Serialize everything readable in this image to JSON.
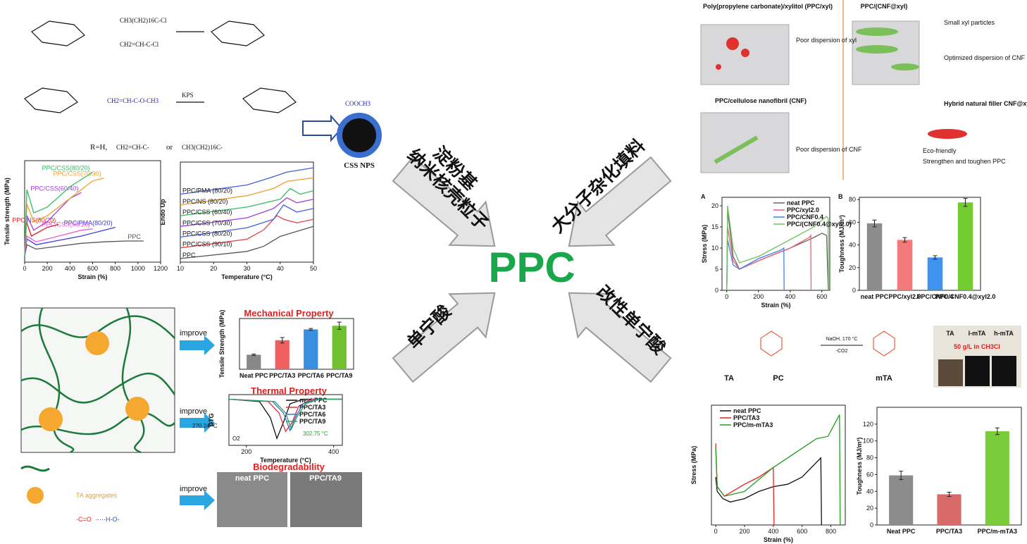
{
  "center": {
    "title": "PPC",
    "arrows": [
      "淀粉基",
      "纳米核壳粒子",
      "大分子杂化填料",
      "单宁酸",
      "改性单宁酸"
    ]
  },
  "top_left": {
    "reagents": [
      "CH3(CH2)16C-Cl",
      "CH2=CH-C-Cl",
      "CH2=CH-C-O-CH3",
      "COOCH3"
    ],
    "catalyst": "KPS",
    "r_group": [
      "R=H,",
      "CH2=CH-C-",
      "or",
      "CH3(CH2)16C-"
    ],
    "particle": "CSS NPS"
  },
  "bottom_left": {
    "improve": [
      "improve",
      "improve",
      "improve"
    ],
    "biodegradability": "Biodegradability",
    "sem": [
      "neat PPC",
      "PPC/TA9"
    ],
    "legend": [
      "TA aggregates",
      "-C=O",
      "·····H-O-"
    ]
  },
  "top_right": {
    "titles": [
      "Poly(propylene carbonate)/xylitol (PPC/xyl)",
      "PPC/(CNF@xyl)",
      "PPC/cellulose nanofibril (CNF)"
    ],
    "notes": [
      "Poor dispersion of xyl",
      "Small xyl particles",
      "Optimized dispersion of CNF",
      "Poor dispersion of CNF",
      "Hybrid natural filler CNF@xyl"
    ],
    "bullets": [
      "Eco-friendly",
      "Strengthen and toughen PPC"
    ]
  },
  "middle_right": {
    "labels": [
      "TA",
      "PC",
      "mTA"
    ],
    "conditions": [
      "NaOH, 170 °C",
      "-CO2"
    ],
    "vials": [
      "TA",
      "l-mTA",
      "h-mTA"
    ],
    "vial_note": "50 g/L in CH3Cl"
  },
  "chart_data": [
    {
      "type": "line",
      "y_label": "Tensile strength (MPa)",
      "x_label": "Strain (%)",
      "xlim": [
        0,
        1200
      ],
      "xticks": [
        0,
        200,
        400,
        600,
        800,
        1000,
        1200
      ],
      "ylim": [
        0,
        35
      ],
      "legend": "inline",
      "series": [
        {
          "name": "PPC",
          "color": "#555555",
          "x": [
            0,
            20,
            100,
            300,
            500,
            700,
            900,
            1050
          ],
          "values": [
            2,
            6,
            4.5,
            5.5,
            6.5,
            7,
            7.3,
            7.3
          ]
        },
        {
          "name": "PPC/PMA(80/20)",
          "color": "#3a3adf",
          "x": [
            0,
            20,
            100,
            300,
            500,
            700,
            800
          ],
          "values": [
            2,
            8,
            6,
            7.5,
            9,
            11,
            12
          ]
        },
        {
          "name": "PPC/CSS(90/10)",
          "color": "#e85ad8",
          "x": [
            0,
            20,
            100,
            300,
            500,
            600
          ],
          "values": [
            2,
            9,
            7,
            9,
            11,
            11.5
          ]
        },
        {
          "name": "PPC/NS(80/20)",
          "color": "#e82020",
          "x": [
            0,
            15,
            60,
            200,
            300
          ],
          "values": [
            2,
            14,
            9,
            12,
            13
          ]
        },
        {
          "name": "PPC/CSS(60/40)",
          "color": "#a040e0",
          "x": [
            0,
            20,
            80,
            200,
            300,
            400,
            500
          ],
          "values": [
            2,
            16,
            11,
            14,
            18,
            22,
            24
          ]
        },
        {
          "name": "PPC/CSS(70/30)",
          "color": "#f0a030",
          "x": [
            0,
            20,
            80,
            200,
            400,
            600,
            700
          ],
          "values": [
            2,
            20,
            14,
            16,
            22,
            28,
            29
          ]
        },
        {
          "name": "PPC/CSS(80/20)",
          "color": "#30c060",
          "x": [
            0,
            20,
            80,
            200,
            400,
            600
          ],
          "values": [
            2,
            25,
            17,
            19,
            26,
            31
          ]
        }
      ]
    },
    {
      "type": "line",
      "y_label": "Endo Up",
      "x_label": "Temperature (°C)",
      "xlim": [
        10,
        50
      ],
      "xticks": [
        10,
        20,
        30,
        40,
        50
      ],
      "ylim": [
        0,
        14
      ],
      "legend": "inline-left",
      "series": [
        {
          "name": "PPC",
          "color": "#555555",
          "x": [
            10,
            30,
            35,
            40,
            45,
            50
          ],
          "values": [
            0.5,
            1.5,
            2.2,
            3.6,
            4.3,
            5
          ]
        },
        {
          "name": "PPC/CSS (90/10)",
          "color": "#e84040",
          "x": [
            10,
            30,
            35,
            39,
            41,
            45,
            50
          ],
          "values": [
            2,
            3.2,
            4.5,
            6.5,
            6,
            5.5,
            6
          ]
        },
        {
          "name": "PPC/CSS (80/20)",
          "color": "#4060e0",
          "x": [
            10,
            30,
            38,
            41,
            45,
            50
          ],
          "values": [
            3.5,
            4.8,
            6,
            8,
            7,
            7.5
          ]
        },
        {
          "name": "PPC/CSS (70/30)",
          "color": "#a040e0",
          "x": [
            10,
            30,
            38,
            42,
            45,
            50
          ],
          "values": [
            5,
            6.2,
            7.5,
            9,
            8.3,
            8.8
          ]
        },
        {
          "name": "PPC/CSS (60/40)",
          "color": "#30c060",
          "x": [
            10,
            30,
            40,
            43,
            46,
            50
          ],
          "values": [
            6.5,
            7.7,
            8.8,
            10.3,
            9.5,
            10
          ]
        },
        {
          "name": "PPC/NS (80/20)",
          "color": "#f0a030",
          "x": [
            10,
            30,
            38,
            42,
            50
          ],
          "values": [
            8,
            9.3,
            10.3,
            11.3,
            11.8
          ]
        },
        {
          "name": "PPC/PMA (80/20)",
          "color": "#4060e0",
          "x": [
            10,
            30,
            37,
            42,
            50
          ],
          "values": [
            9.5,
            10.8,
            11.8,
            12.6,
            13.2
          ]
        }
      ]
    },
    {
      "type": "bar",
      "title": "Mechanical Property",
      "y_label": "Tensile Strength (MPa)",
      "categories": [
        "Neat PPC",
        "PPC/TA3",
        "PPC/TA6",
        "PPC/TA9"
      ],
      "values": [
        8,
        16,
        22,
        24
      ],
      "errors": [
        0.4,
        1.5,
        0.5,
        2
      ],
      "colors": [
        "#888888",
        "#f06060",
        "#3a8ee0",
        "#70c030"
      ],
      "ylim": [
        0,
        28
      ]
    },
    {
      "type": "line",
      "title": "Thermal Property",
      "y_label": "DTG",
      "x_label": "Temperature (°C)",
      "xlim": [
        160,
        420
      ],
      "xticks": [
        200,
        400
      ],
      "ylim": [
        -10,
        1
      ],
      "legend": "upper right",
      "annotations": [
        "270.24 °C",
        "302.75 °C",
        "O2"
      ],
      "series": [
        {
          "name": "neat PPC",
          "color": "#111111",
          "x": [
            160,
            230,
            255,
            270,
            285,
            300,
            330,
            420
          ],
          "values": [
            0,
            -0.5,
            -4,
            -8.5,
            -5,
            -1,
            0,
            0
          ]
        },
        {
          "name": "PPC/TA3",
          "color": "#e03040",
          "x": [
            160,
            250,
            275,
            290,
            305,
            320,
            350,
            420
          ],
          "values": [
            0,
            -0.5,
            -3,
            -7,
            -5,
            -1.5,
            0,
            0
          ]
        },
        {
          "name": "PPC/TA6",
          "color": "#3a70d0",
          "x": [
            160,
            260,
            285,
            300,
            312,
            330,
            360,
            420
          ],
          "values": [
            0,
            -0.5,
            -3,
            -6.8,
            -4,
            -1,
            0,
            0
          ]
        },
        {
          "name": "PPC/TA9",
          "color": "#30a060",
          "x": [
            160,
            265,
            290,
            303,
            315,
            335,
            365,
            420
          ],
          "values": [
            0,
            -0.5,
            -3,
            -6.5,
            -4,
            -1,
            0,
            0
          ]
        }
      ]
    },
    {
      "type": "line",
      "panel": "A",
      "y_label": "Stress (MPa)",
      "x_label": "Strain (%)",
      "xlim": [
        -30,
        650
      ],
      "xticks": [
        0,
        200,
        400,
        600
      ],
      "ylim": [
        0,
        22
      ],
      "yticks": [
        0,
        5,
        10,
        15,
        20
      ],
      "legend": "upper right",
      "series": [
        {
          "name": "neat PPC",
          "color": "#666666",
          "x": [
            0,
            5,
            40,
            80,
            200,
            400,
            550,
            600,
            630,
            640
          ],
          "values": [
            0,
            19,
            8,
            5,
            7,
            10,
            12.5,
            13.5,
            13,
            0
          ]
        },
        {
          "name": "PPC/xyl2.0",
          "color": "#f06070",
          "x": [
            0,
            5,
            40,
            80,
            200,
            400,
            520,
            530,
            532
          ],
          "values": [
            0,
            15,
            7,
            5,
            7,
            10,
            12.5,
            13,
            0
          ]
        },
        {
          "name": "PPC/CNF0.4",
          "color": "#4080f0",
          "x": [
            0,
            5,
            40,
            80,
            200,
            340,
            360,
            362
          ],
          "values": [
            0,
            12,
            6,
            5,
            7.5,
            9.5,
            10,
            0
          ]
        },
        {
          "name": "PPC/(CNF0.4@xyl2.0)",
          "color": "#70c060",
          "x": [
            0,
            5,
            40,
            80,
            200,
            400,
            550,
            630,
            640,
            642
          ],
          "values": [
            0,
            20,
            10,
            6.5,
            8,
            12,
            15,
            17.5,
            17,
            0
          ]
        }
      ]
    },
    {
      "type": "bar",
      "panel": "B",
      "y_label": "Toughness (MJ/m³)",
      "categories": [
        "neat PPC",
        "PPC/xyl2.0",
        "PPC/CNF0.4",
        "PPC/CNF0.4@xyl2.0"
      ],
      "values": [
        59,
        44.5,
        29,
        77.5
      ],
      "errors": [
        3,
        2,
        1.5,
        3.5
      ],
      "colors": [
        "#8c8c8c",
        "#f27a7a",
        "#3f92ee",
        "#72cc30"
      ],
      "ylim": [
        0,
        82
      ],
      "yticks": [
        0,
        20,
        40,
        60,
        80
      ]
    },
    {
      "type": "line",
      "y_label": "Stress (MPa)",
      "x_label": "Strain (%)",
      "xlim": [
        -30,
        900
      ],
      "xticks": [
        0,
        200,
        400,
        600,
        800
      ],
      "ylim": [
        0,
        25
      ],
      "legend": "upper left",
      "series": [
        {
          "name": "neat PPC",
          "color": "#111111",
          "x": [
            0,
            10,
            50,
            100,
            200,
            300,
            400,
            500,
            600,
            730,
            735
          ],
          "values": [
            10,
            7,
            5.5,
            4.8,
            5.5,
            7,
            8,
            8.5,
            10,
            14,
            0
          ]
        },
        {
          "name": "PPC/TA3",
          "color": "#e82020",
          "x": [
            0,
            10,
            60,
            200,
            300,
            400,
            405
          ],
          "values": [
            17,
            8,
            6,
            8.5,
            10,
            12,
            0
          ]
        },
        {
          "name": "PPC/m-mTA3",
          "color": "#20a020",
          "x": [
            0,
            10,
            60,
            200,
            400,
            600,
            700,
            780,
            860,
            865
          ],
          "values": [
            16,
            8,
            6,
            7,
            12,
            16,
            18,
            18.5,
            23,
            0
          ]
        }
      ]
    },
    {
      "type": "bar",
      "y_label": "Toughness (MJ/m³)",
      "categories": [
        "Neat PPC",
        "PPC/TA3",
        "PPC/m-mTA3"
      ],
      "values": [
        59,
        36.5,
        111.5
      ],
      "errors": [
        5,
        2.5,
        4
      ],
      "colors": [
        "#8c8c8c",
        "#d96a6a",
        "#7acc3a"
      ],
      "ylim": [
        0,
        140
      ],
      "yticks": [
        0,
        20,
        40,
        60,
        80,
        100,
        120
      ]
    }
  ]
}
